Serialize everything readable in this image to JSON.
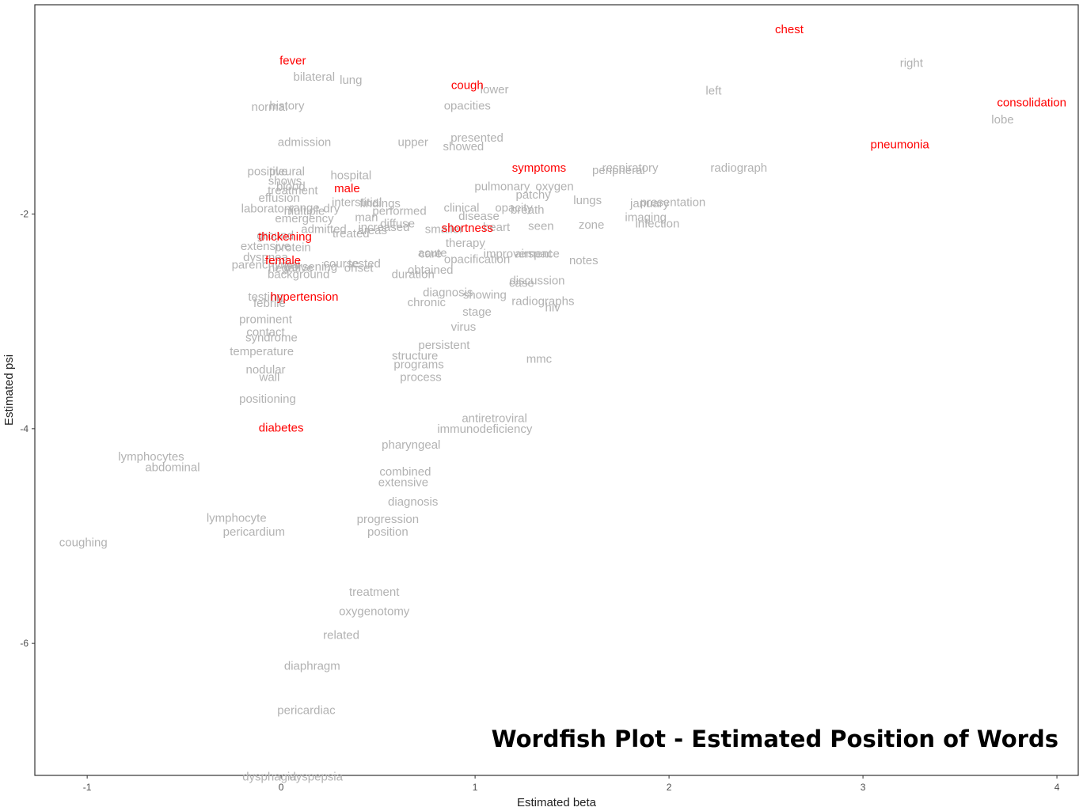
{
  "chart_data": {
    "type": "scatter",
    "title": "Wordfish Plot - Estimated Position of Words",
    "xlabel": "Estimated beta",
    "ylabel": "Estimated psi",
    "xlim": [
      -1.27,
      4.11
    ],
    "ylim": [
      -7.23,
      -0.05
    ],
    "xticks": [
      -1,
      0,
      1,
      2,
      3,
      4
    ],
    "yticks": [
      -2,
      -4,
      -6
    ],
    "grid": false,
    "colors": {
      "highlight": "#ff0000",
      "word": "#b2b2b2",
      "frame": "#333333"
    },
    "highlighted_words": [
      {
        "text": "chest",
        "x": 2.62,
        "y": -0.28
      },
      {
        "text": "fever",
        "x": 0.06,
        "y": -0.57
      },
      {
        "text": "cough",
        "x": 0.96,
        "y": -0.8
      },
      {
        "text": "consolidation",
        "x": 3.87,
        "y": -0.96
      },
      {
        "text": "pneumonia",
        "x": 3.19,
        "y": -1.35
      },
      {
        "text": "symptoms",
        "x": 1.33,
        "y": -1.57
      },
      {
        "text": "male",
        "x": 0.34,
        "y": -1.76
      },
      {
        "text": "shortness",
        "x": 0.96,
        "y": -2.13
      },
      {
        "text": "thickening",
        "x": 0.02,
        "y": -2.21
      },
      {
        "text": "female",
        "x": 0.01,
        "y": -2.43
      },
      {
        "text": "hypertension",
        "x": 0.12,
        "y": -2.77
      },
      {
        "text": "diabetes",
        "x": 0.0,
        "y": -3.99
      }
    ],
    "other_words": [
      {
        "text": "right",
        "x": 3.25,
        "y": -0.59
      },
      {
        "text": "left",
        "x": 2.23,
        "y": -0.85
      },
      {
        "text": "lobe",
        "x": 3.72,
        "y": -1.12
      },
      {
        "text": "bilateral",
        "x": 0.17,
        "y": -0.72
      },
      {
        "text": "lung",
        "x": 0.36,
        "y": -0.75
      },
      {
        "text": "lower",
        "x": 1.1,
        "y": -0.84
      },
      {
        "text": "history",
        "x": 0.03,
        "y": -0.99
      },
      {
        "text": "normal",
        "x": -0.06,
        "y": -1.0
      },
      {
        "text": "opacities",
        "x": 0.96,
        "y": -0.99
      },
      {
        "text": "admission",
        "x": 0.12,
        "y": -1.33
      },
      {
        "text": "upper",
        "x": 0.68,
        "y": -1.33
      },
      {
        "text": "presented",
        "x": 1.01,
        "y": -1.29
      },
      {
        "text": "showed",
        "x": 0.94,
        "y": -1.37
      },
      {
        "text": "respiratory",
        "x": 1.8,
        "y": -1.57
      },
      {
        "text": "peripheral",
        "x": 1.74,
        "y": -1.59
      },
      {
        "text": "radiograph",
        "x": 2.36,
        "y": -1.57
      },
      {
        "text": "pleural",
        "x": 0.03,
        "y": -1.6
      },
      {
        "text": "positive",
        "x": -0.07,
        "y": -1.6
      },
      {
        "text": "hospital",
        "x": 0.36,
        "y": -1.64
      },
      {
        "text": "shows",
        "x": 0.02,
        "y": -1.69
      },
      {
        "text": "blood",
        "x": 0.05,
        "y": -1.74
      },
      {
        "text": "treatment",
        "x": 0.06,
        "y": -1.78
      },
      {
        "text": "pulmonary",
        "x": 1.14,
        "y": -1.74
      },
      {
        "text": "oxygen",
        "x": 1.41,
        "y": -1.74
      },
      {
        "text": "patchy",
        "x": 1.3,
        "y": -1.82
      },
      {
        "text": "effusion",
        "x": -0.01,
        "y": -1.85
      },
      {
        "text": "lungs",
        "x": 1.58,
        "y": -1.87
      },
      {
        "text": "findings",
        "x": 0.51,
        "y": -1.9
      },
      {
        "text": "interstitial",
        "x": 0.39,
        "y": -1.89
      },
      {
        "text": "presentation",
        "x": 2.02,
        "y": -1.89
      },
      {
        "text": "january",
        "x": 1.9,
        "y": -1.9
      },
      {
        "text": "laboratory",
        "x": -0.07,
        "y": -1.95
      },
      {
        "text": "multiple",
        "x": 0.12,
        "y": -1.97
      },
      {
        "text": "range",
        "x": 0.12,
        "y": -1.94
      },
      {
        "text": "dry",
        "x": 0.26,
        "y": -1.95
      },
      {
        "text": "performed",
        "x": 0.61,
        "y": -1.97
      },
      {
        "text": "clinical",
        "x": 0.93,
        "y": -1.94
      },
      {
        "text": "opacity",
        "x": 1.2,
        "y": -1.94
      },
      {
        "text": "breath",
        "x": 1.27,
        "y": -1.96
      },
      {
        "text": "disease",
        "x": 1.02,
        "y": -2.02
      },
      {
        "text": "imaging",
        "x": 1.88,
        "y": -2.03
      },
      {
        "text": "emergency",
        "x": 0.12,
        "y": -2.04
      },
      {
        "text": "man",
        "x": 0.44,
        "y": -2.03
      },
      {
        "text": "diffuse",
        "x": 0.6,
        "y": -2.09
      },
      {
        "text": "increased",
        "x": 0.53,
        "y": -2.12
      },
      {
        "text": "infection",
        "x": 1.94,
        "y": -2.09
      },
      {
        "text": "seen",
        "x": 1.34,
        "y": -2.11
      },
      {
        "text": "zone",
        "x": 1.6,
        "y": -2.1
      },
      {
        "text": "heart",
        "x": 1.11,
        "y": -2.12
      },
      {
        "text": "smaller",
        "x": 0.84,
        "y": -2.14
      },
      {
        "text": "admitted",
        "x": 0.22,
        "y": -2.14
      },
      {
        "text": "treated",
        "x": 0.36,
        "y": -2.18
      },
      {
        "text": "areas",
        "x": 0.47,
        "y": -2.15
      },
      {
        "text": "ground",
        "x": -0.03,
        "y": -2.2
      },
      {
        "text": "therapy",
        "x": 0.95,
        "y": -2.27
      },
      {
        "text": "protein",
        "x": 0.06,
        "y": -2.31
      },
      {
        "text": "extensive",
        "x": -0.08,
        "y": -2.3
      },
      {
        "text": "acute",
        "x": 0.78,
        "y": -2.36
      },
      {
        "text": "care",
        "x": 0.77,
        "y": -2.37
      },
      {
        "text": "improvement",
        "x": 1.22,
        "y": -2.37
      },
      {
        "text": "airspace",
        "x": 1.32,
        "y": -2.37
      },
      {
        "text": "notes",
        "x": 1.56,
        "y": -2.43
      },
      {
        "text": "dyspnea",
        "x": -0.08,
        "y": -2.4
      },
      {
        "text": "opacification",
        "x": 1.01,
        "y": -2.42
      },
      {
        "text": "parenchymal",
        "x": -0.08,
        "y": -2.47
      },
      {
        "text": "course",
        "x": 0.31,
        "y": -2.46
      },
      {
        "text": "tested",
        "x": 0.43,
        "y": -2.46
      },
      {
        "text": "onset",
        "x": 0.4,
        "y": -2.5
      },
      {
        "text": "negative",
        "x": 0.05,
        "y": -2.5
      },
      {
        "text": "worsening",
        "x": 0.15,
        "y": -2.49
      },
      {
        "text": "obtained",
        "x": 0.77,
        "y": -2.52
      },
      {
        "text": "duration",
        "x": 0.68,
        "y": -2.56
      },
      {
        "text": "background",
        "x": 0.09,
        "y": -2.56
      },
      {
        "text": "discussion",
        "x": 1.32,
        "y": -2.62
      },
      {
        "text": "case",
        "x": 1.24,
        "y": -2.64
      },
      {
        "text": "showing",
        "x": 1.05,
        "y": -2.75
      },
      {
        "text": "radiographs",
        "x": 1.35,
        "y": -2.81
      },
      {
        "text": "hiv",
        "x": 1.4,
        "y": -2.87
      },
      {
        "text": "testing",
        "x": -0.08,
        "y": -2.77
      },
      {
        "text": "febrile",
        "x": -0.06,
        "y": -2.83
      },
      {
        "text": "diagnosis",
        "x": 0.86,
        "y": -2.73
      },
      {
        "text": "chronic",
        "x": 0.75,
        "y": -2.82
      },
      {
        "text": "stage",
        "x": 1.01,
        "y": -2.91
      },
      {
        "text": "prominent",
        "x": -0.08,
        "y": -2.98
      },
      {
        "text": "virus",
        "x": 0.94,
        "y": -3.05
      },
      {
        "text": "contact",
        "x": -0.08,
        "y": -3.1
      },
      {
        "text": "syndrome",
        "x": -0.05,
        "y": -3.15
      },
      {
        "text": "persistent",
        "x": 0.84,
        "y": -3.22
      },
      {
        "text": "temperature",
        "x": -0.1,
        "y": -3.28
      },
      {
        "text": "structure",
        "x": 0.69,
        "y": -3.32
      },
      {
        "text": "mmc",
        "x": 1.33,
        "y": -3.35
      },
      {
        "text": "programs",
        "x": 0.71,
        "y": -3.4
      },
      {
        "text": "nodular",
        "x": -0.08,
        "y": -3.45
      },
      {
        "text": "wall",
        "x": -0.06,
        "y": -3.52
      },
      {
        "text": "process",
        "x": 0.72,
        "y": -3.52
      },
      {
        "text": "antiretroviral",
        "x": 1.1,
        "y": -3.9
      },
      {
        "text": "immunodeficiency",
        "x": 1.05,
        "y": -4.0
      },
      {
        "text": "positioning",
        "x": -0.07,
        "y": -3.72
      },
      {
        "text": "pharyngeal",
        "x": 0.67,
        "y": -4.15
      },
      {
        "text": "lymphocytes",
        "x": -0.67,
        "y": -4.26
      },
      {
        "text": "abdominal",
        "x": -0.56,
        "y": -4.36
      },
      {
        "text": "combined",
        "x": 0.64,
        "y": -4.4
      },
      {
        "text": "extensive",
        "x": 0.63,
        "y": -4.5
      },
      {
        "text": "diagnosis",
        "x": 0.68,
        "y": -4.68
      },
      {
        "text": "lymphocyte",
        "x": -0.23,
        "y": -4.83
      },
      {
        "text": "progression",
        "x": 0.55,
        "y": -4.84
      },
      {
        "text": "pericardium",
        "x": -0.14,
        "y": -4.96
      },
      {
        "text": "position",
        "x": 0.55,
        "y": -4.96
      },
      {
        "text": "coughing",
        "x": -1.02,
        "y": -5.06
      },
      {
        "text": "treatment",
        "x": 0.48,
        "y": -5.52
      },
      {
        "text": "oxygenotomy",
        "x": 0.48,
        "y": -5.7
      },
      {
        "text": "related",
        "x": 0.31,
        "y": -5.92
      },
      {
        "text": "diaphragm",
        "x": 0.16,
        "y": -6.21
      },
      {
        "text": "pericardiac",
        "x": 0.13,
        "y": -6.62
      },
      {
        "text": "dysphagia",
        "x": -0.06,
        "y": -7.24
      },
      {
        "text": "dyspepsia",
        "x": 0.18,
        "y": -7.24
      }
    ]
  }
}
